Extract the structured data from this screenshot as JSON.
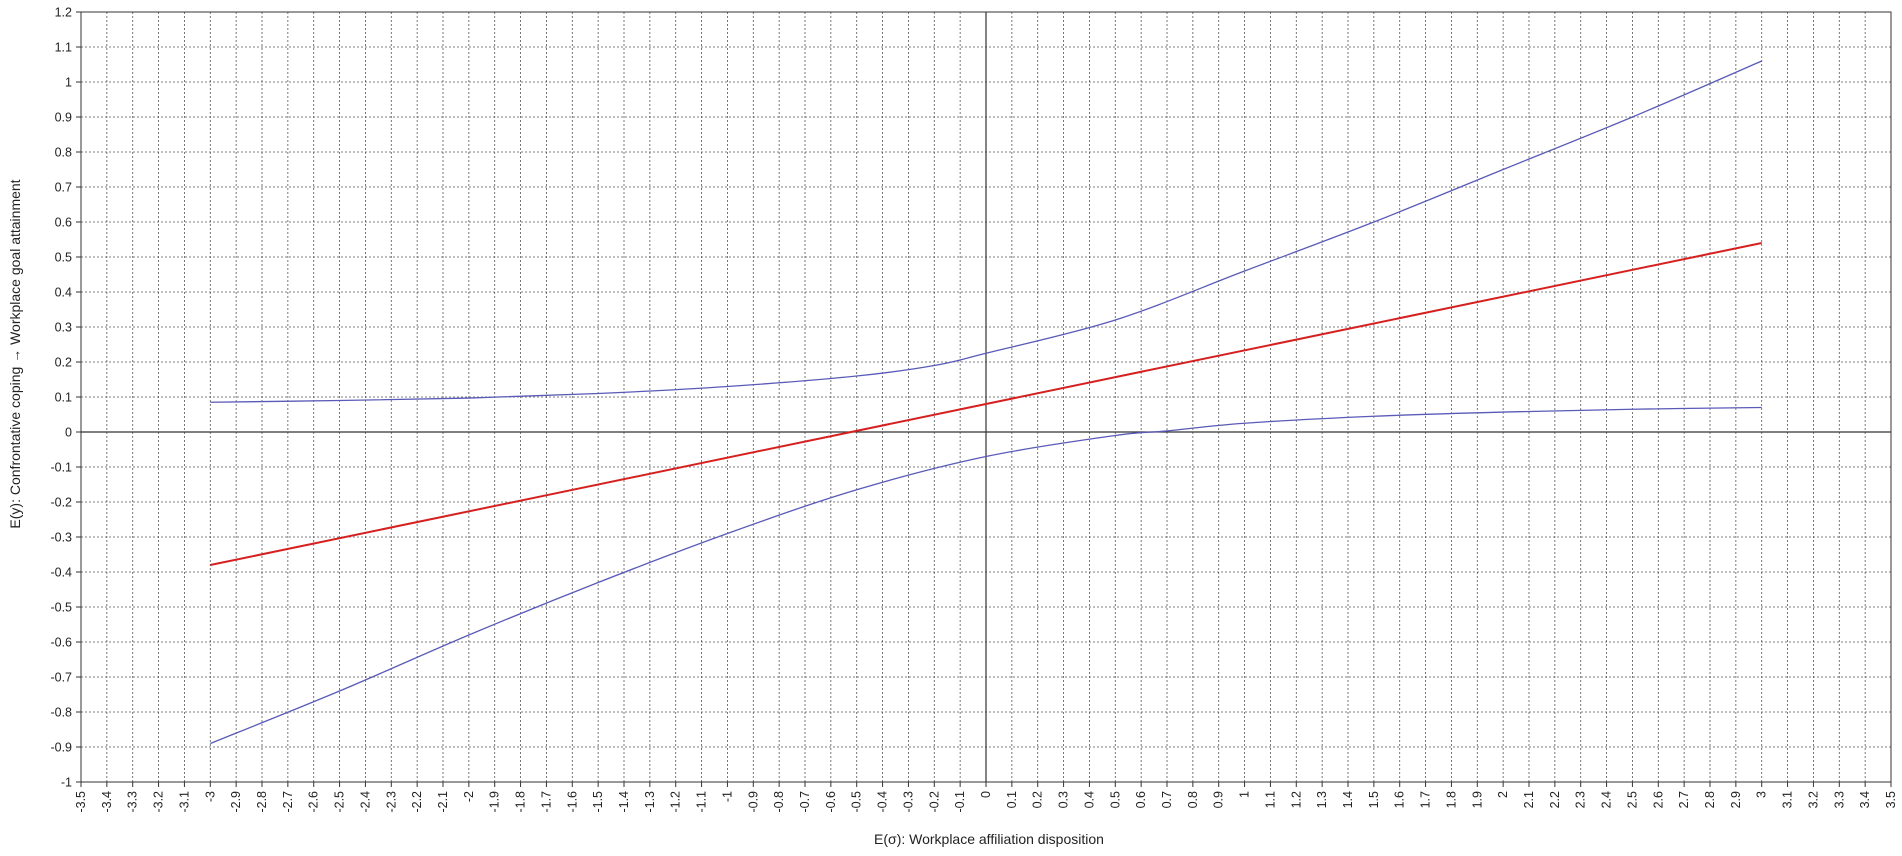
{
  "chart_data": {
    "type": "line",
    "title": "",
    "xlabel": "E(σ): Workplace affiliation disposition",
    "ylabel": "E(y): Confrontative coping → Workplace goal attainment",
    "xlim": [
      -3.5,
      3.5
    ],
    "ylim": [
      -1,
      1.2
    ],
    "x_step": 0.1,
    "y_step": 0.1,
    "grid": true,
    "grid_style": "dotted",
    "legend": "none",
    "series": [
      {
        "color": "#d62020",
        "x": [
          -3,
          3
        ],
        "y": [
          -0.38,
          0.54
        ]
      },
      {
        "color": "#5a5ab8",
        "x": [
          -3,
          -2.5,
          -2,
          -1.5,
          -1,
          -0.5,
          -0.2,
          0,
          0.5,
          1,
          1.5,
          2,
          2.5,
          3
        ],
        "y": [
          0.085,
          0.09,
          0.097,
          0.11,
          0.13,
          0.16,
          0.19,
          0.225,
          0.32,
          0.46,
          0.6,
          0.75,
          0.9,
          1.06
        ]
      },
      {
        "color": "#5a5ab8",
        "x": [
          -3,
          -2.5,
          -2,
          -1.5,
          -1,
          -0.5,
          0,
          0.5,
          0.7,
          1,
          1.5,
          2,
          2.5,
          3
        ],
        "y": [
          -0.89,
          -0.74,
          -0.58,
          -0.43,
          -0.29,
          -0.165,
          -0.07,
          -0.01,
          0.003,
          0.025,
          0.045,
          0.057,
          0.065,
          0.07
        ]
      }
    ]
  }
}
